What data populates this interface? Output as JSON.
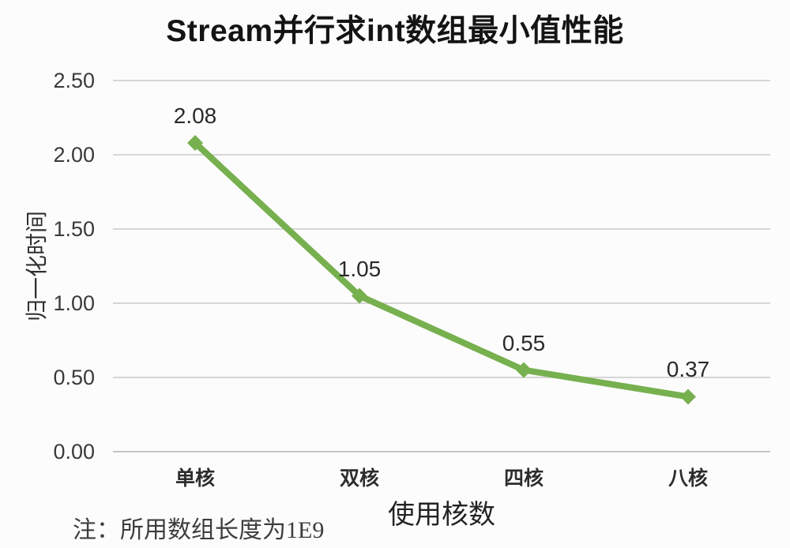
{
  "chart_data": {
    "type": "line",
    "title": "Stream并行求int数组最小值性能",
    "categories": [
      "单核",
      "双核",
      "四核",
      "八核"
    ],
    "values": [
      2.08,
      1.05,
      0.55,
      0.37
    ],
    "point_labels": [
      "2.08",
      "1.05",
      "0.55",
      "0.37"
    ],
    "xlabel": "使用核数",
    "ylabel": "归一化时间",
    "ylim": [
      0,
      2.5
    ],
    "ytick_step": 0.5,
    "ytick_labels": [
      "0.00",
      "0.50",
      "1.00",
      "1.50",
      "2.00",
      "2.50"
    ],
    "grid": "horizontal",
    "legend": "none",
    "marker": "diamond",
    "line_color": "#77b04f",
    "gridline_color": "#d6d6d6",
    "axisline_color": "#c4c4c4"
  },
  "note": "注：所用数组长度为1E9"
}
